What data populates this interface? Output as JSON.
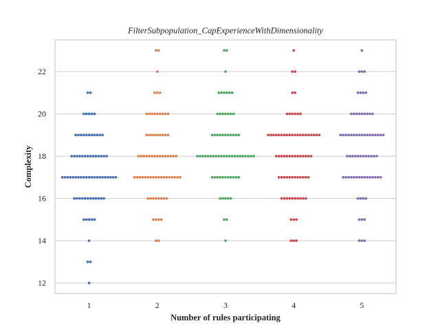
{
  "chart_data": {
    "type": "swarm",
    "title": "FilterSubpopulation_CapExperienceWithDimensionality",
    "xlabel": "Number of rules participating",
    "ylabel": "Complexity",
    "categories": [
      "1",
      "2",
      "3",
      "4",
      "5"
    ],
    "yticks": [
      "12",
      "14",
      "16",
      "18",
      "20",
      "22"
    ],
    "ylim": [
      11.5,
      23.5
    ],
    "grid": "horizontal",
    "series": [
      {
        "category": "1",
        "color": "#4c72b0",
        "counts": {
          "12": 1,
          "13": 2,
          "14": 1,
          "15": 5,
          "16": 12,
          "17": 21,
          "18": 14,
          "19": 11,
          "20": 5,
          "21": 2
        }
      },
      {
        "category": "2",
        "color": "#dd8452",
        "counts": {
          "14": 2,
          "15": 4,
          "16": 8,
          "17": 18,
          "18": 15,
          "19": 9,
          "20": 9,
          "21": 3,
          "22": 1,
          "23": 2
        }
      },
      {
        "category": "3",
        "color": "#55a868",
        "counts": {
          "14": 1,
          "15": 2,
          "16": 5,
          "17": 11,
          "18": 22,
          "19": 11,
          "20": 7,
          "21": 6,
          "22": 1,
          "23": 2
        }
      },
      {
        "category": "4",
        "color": "#c44e52",
        "counts": {
          "14": 3,
          "15": 3,
          "16": 10,
          "17": 12,
          "18": 14,
          "19": 20,
          "20": 6,
          "21": 2,
          "22": 2,
          "23": 1
        }
      },
      {
        "category": "5",
        "color": "#8172b3",
        "counts": {
          "14": 3,
          "15": 3,
          "16": 4,
          "17": 15,
          "18": 12,
          "19": 17,
          "20": 9,
          "21": 4,
          "22": 3,
          "23": 1
        }
      }
    ]
  }
}
